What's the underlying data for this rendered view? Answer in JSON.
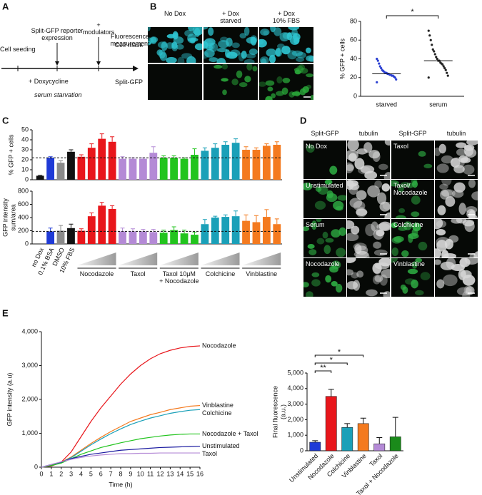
{
  "panel_labels": [
    "A",
    "B",
    "C",
    "D",
    "E"
  ],
  "diagram": {
    "steps": [
      "Cell seeding",
      "Split-GFP reporter\nexpression",
      "+\nmodulators",
      "Fluorescence\nmeasurement"
    ],
    "notes": [
      "+ Doxycycline",
      "serum starvation"
    ]
  },
  "images_b": {
    "columns": [
      "No Dox",
      "+ Dox\nstarved",
      "+ Dox\n10% FBS"
    ],
    "rows": [
      "Cell mask",
      "Split-GFP"
    ]
  },
  "images_d": {
    "columns": [
      "Split-GFP",
      "tubulin",
      "Split-GFP",
      "tubulin"
    ],
    "labels": [
      "No Dox",
      "Taxol",
      "Unstimulated",
      "Taxol/\nNocodazole",
      "Serum",
      "Colchicine",
      "Nocodazole",
      "Vinblastine"
    ]
  },
  "chart_data": [
    {
      "type": "scatter",
      "ylabel": "% GFP + cells",
      "categories": [
        "starved",
        "serum"
      ],
      "colors": [
        "#2a3fd1",
        "#222222"
      ],
      "values": [
        [
          15,
          18,
          20,
          21,
          22,
          22,
          23,
          23,
          24,
          24,
          25,
          25,
          26,
          27,
          28,
          30,
          32,
          35,
          38,
          40
        ],
        [
          20,
          22,
          25,
          28,
          30,
          32,
          34,
          35,
          36,
          38,
          38,
          40,
          42,
          45,
          48,
          50,
          55,
          60,
          65,
          70
        ]
      ],
      "medians": [
        24,
        38
      ],
      "significance": {
        "from": 0,
        "to": 1,
        "label": "*"
      },
      "ylim": [
        0,
        80
      ],
      "yticks": [
        0,
        20,
        40,
        60,
        80
      ]
    },
    {
      "type": "bar",
      "categories": [
        "no Dox",
        "0.1% BSA",
        "DMSO",
        "10% FBS"
      ],
      "category_colors": [
        "#111111",
        "#1f3ad6",
        "#8a8a8a",
        "#111111"
      ],
      "groups": [
        {
          "name": "Nocodazole",
          "color": "#e8161b"
        },
        {
          "name": "Taxol",
          "color": "#b48ad6"
        },
        {
          "name": "Taxol 10μM\n+ Nocodazole",
          "color": "#22c41e"
        },
        {
          "name": "Colchicine",
          "color": "#1aa0b8"
        },
        {
          "name": "Vinblastine",
          "color": "#f47a1f"
        }
      ],
      "rows": [
        {
          "ylabel": "% GFP + cells",
          "ylim": [
            0,
            50
          ],
          "yticks": [
            0,
            10,
            20,
            30,
            40,
            50
          ],
          "reference": 22,
          "values": [
            4,
            22,
            17,
            28
          ],
          "errors": [
            0.5,
            1,
            2,
            2
          ],
          "group_values": [
            [
              23,
              32,
              41,
              38
            ],
            [
              21,
              21,
              21,
              27
            ],
            [
              22,
              22,
              21,
              25
            ],
            [
              29,
              32,
              35,
              37
            ],
            [
              30,
              30,
              34,
              35
            ]
          ],
          "group_errors": [
            [
              2,
              4,
              5,
              5
            ],
            [
              2,
              1,
              1,
              6
            ],
            [
              2,
              2,
              1,
              6
            ],
            [
              3,
              4,
              3,
              4
            ],
            [
              3,
              2,
              2,
              3
            ]
          ]
        },
        {
          "ylabel": "GFP intensity\nsum/area",
          "ylim": [
            0,
            800
          ],
          "yticks": [
            0,
            200,
            400,
            600,
            800
          ],
          "reference": 190,
          "values": [
            0,
            190,
            200,
            240
          ],
          "errors": [
            0,
            50,
            80,
            60
          ],
          "group_values": [
            [
              200,
              420,
              580,
              530
            ],
            [
              190,
              190,
              190,
              180
            ],
            [
              170,
              210,
              160,
              140
            ],
            [
              300,
              400,
              410,
              420
            ],
            [
              350,
              330,
              410,
              300
            ]
          ],
          "group_errors": [
            [
              30,
              50,
              50,
              50
            ],
            [
              50,
              40,
              30,
              40
            ],
            [
              40,
              50,
              50,
              40
            ],
            [
              70,
              20,
              30,
              80
            ],
            [
              90,
              100,
              110,
              80
            ]
          ]
        }
      ]
    },
    {
      "type": "line",
      "ylabel": "GFP intensity (a.u)",
      "xlabel": "Time (h)",
      "x": [
        0,
        1,
        2,
        3,
        4,
        5,
        6,
        7,
        8,
        9,
        10,
        11,
        12,
        13,
        14,
        15,
        16
      ],
      "xlim": [
        0,
        16
      ],
      "xticks": [
        0,
        1,
        2,
        3,
        4,
        5,
        6,
        7,
        8,
        9,
        10,
        11,
        12,
        13,
        14,
        15,
        16
      ],
      "ylim": [
        0,
        4000
      ],
      "yticks": [
        0,
        {
          "value": 1000,
          "label": "1,000"
        },
        {
          "value": 2000,
          "label": "2,000"
        },
        {
          "value": 3000,
          "label": "3,000"
        },
        {
          "value": 4000,
          "label": "4,000"
        }
      ],
      "series": [
        {
          "name": "Nocodazole",
          "color": "#e8161b",
          "values": [
            0,
            30,
            150,
            450,
            900,
            1350,
            1750,
            2100,
            2450,
            2750,
            3000,
            3200,
            3350,
            3450,
            3520,
            3560,
            3580
          ]
        },
        {
          "name": "Vinblastine",
          "color": "#f47a1f",
          "values": [
            0,
            50,
            150,
            300,
            500,
            700,
            880,
            1050,
            1200,
            1350,
            1450,
            1550,
            1620,
            1700,
            1750,
            1800,
            1820
          ]
        },
        {
          "name": "Colchicine",
          "color": "#1aa0b8",
          "values": [
            0,
            45,
            140,
            280,
            470,
            660,
            830,
            990,
            1130,
            1260,
            1360,
            1450,
            1520,
            1590,
            1640,
            1680,
            1700
          ]
        },
        {
          "name": "Nocodazole + Taxol",
          "color": "#22c41e",
          "values": [
            0,
            50,
            120,
            250,
            380,
            480,
            580,
            650,
            720,
            780,
            840,
            880,
            920,
            950,
            970,
            980,
            980
          ]
        },
        {
          "name": "Unstimulated",
          "color": "#1a1aa0",
          "values": [
            0,
            80,
            150,
            250,
            320,
            380,
            420,
            460,
            500,
            520,
            540,
            560,
            580,
            590,
            600,
            610,
            620
          ]
        },
        {
          "name": "Taxol",
          "color": "#b48ad6",
          "values": [
            0,
            80,
            160,
            230,
            290,
            330,
            360,
            380,
            400,
            400,
            410,
            410,
            420,
            420,
            420,
            420,
            420
          ]
        }
      ]
    },
    {
      "type": "bar",
      "ylabel": "Final fluorescence\n(a.u.)",
      "categories": [
        "Unstimulated",
        "Nocodazole",
        "Colchicine",
        "Vinblastine",
        "Taxol",
        "Taxol + Nocodazole"
      ],
      "colors": [
        "#1f3ad6",
        "#e8161b",
        "#1aa0b8",
        "#f47a1f",
        "#b48ad6",
        "#1a8a1a"
      ],
      "values": [
        550,
        3500,
        1500,
        1750,
        450,
        900
      ],
      "errors": [
        100,
        450,
        250,
        350,
        400,
        1250
      ],
      "ylim": [
        0,
        5000
      ],
      "yticks": [
        0,
        {
          "value": 1000,
          "label": "1,000"
        },
        {
          "value": 2000,
          "label": "2,000"
        },
        {
          "value": 3000,
          "label": "3,000"
        },
        {
          "value": 4000,
          "label": "4,000"
        },
        {
          "value": 5000,
          "label": "5,000"
        }
      ],
      "significance": [
        {
          "from": 0,
          "to": 1,
          "label": "**"
        },
        {
          "from": 0,
          "to": 2,
          "label": "*"
        },
        {
          "from": 0,
          "to": 3,
          "label": "*"
        }
      ]
    }
  ]
}
